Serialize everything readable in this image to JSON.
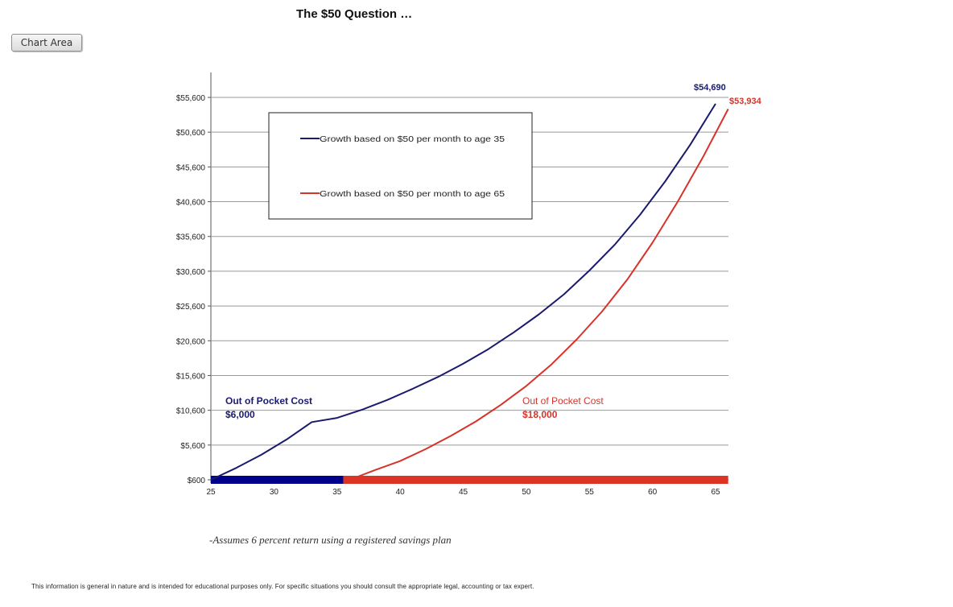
{
  "title": "The $50 Question …",
  "chart_area_button": "Chart Area",
  "footnote": "-Assumes 6 percent return using a registered savings plan",
  "disclaimer": "This information is general in nature and is intended for educational purposes only. For specific situations you should consult the appropriate legal, accounting or tax expert.",
  "colors": {
    "series_35": "#1a1a6e",
    "series_65": "#d6332b",
    "grid": "#999999"
  },
  "chart_data": {
    "type": "line",
    "title": "The $50 Question …",
    "xlabel": "",
    "ylabel": "",
    "xlim": [
      25,
      66
    ],
    "ylim": [
      600,
      55600
    ],
    "x_ticks": [
      25,
      30,
      35,
      40,
      45,
      50,
      55,
      60,
      65
    ],
    "y_ticks": [
      "$600",
      "$5,600",
      "$10,600",
      "$15,600",
      "$20,600",
      "$25,600",
      "$30,600",
      "$35,600",
      "$40,600",
      "$45,600",
      "$50,600",
      "$55,600"
    ],
    "y_tick_values": [
      600,
      5600,
      10600,
      15600,
      20600,
      25600,
      30600,
      35600,
      40600,
      45600,
      50600,
      55600
    ],
    "grid": true,
    "legend": {
      "position": "upper-left-inside",
      "entries": [
        "Growth based on $50 per month to age 35",
        "Growth based on $50 per month to age 65"
      ]
    },
    "series": [
      {
        "name": "Growth based on $50 per month to age 35",
        "color": "#1a1a6e",
        "x": [
          25,
          27,
          29,
          31,
          33,
          35,
          37,
          39,
          41,
          43,
          45,
          47,
          49,
          51,
          53,
          55,
          57,
          59,
          61,
          63,
          65
        ],
        "y": [
          600,
          2300,
          4200,
          6400,
          8900,
          9500,
          10700,
          12100,
          13700,
          15400,
          17300,
          19400,
          21800,
          24400,
          27300,
          30700,
          34400,
          38700,
          43500,
          48800,
          54690
        ],
        "end_label": "$54,690"
      },
      {
        "name": "Growth based on $50 per month to age 65",
        "color": "#d6332b",
        "x": [
          36,
          38,
          40,
          42,
          44,
          46,
          48,
          50,
          52,
          54,
          56,
          58,
          60,
          62,
          64,
          66
        ],
        "y": [
          600,
          2000,
          3300,
          5000,
          6900,
          9000,
          11400,
          14100,
          17200,
          20800,
          24800,
          29400,
          34700,
          40600,
          47000,
          53934
        ],
        "end_label": "$53,934"
      }
    ],
    "bars": [
      {
        "x_start": 25,
        "x_end": 35.5,
        "color": "#00008b"
      },
      {
        "x_start": 35.5,
        "x_end": 66,
        "color": "#dd3322"
      }
    ],
    "annotations": [
      {
        "text": "Out of Pocket Cost",
        "value": "$6,000",
        "color": "#1a1a6e",
        "x": 26,
        "y": 11500
      },
      {
        "text": "Out of Pocket Cost",
        "value": "$18,000",
        "color": "#d6332b",
        "x": 49,
        "y": 11500
      }
    ]
  }
}
